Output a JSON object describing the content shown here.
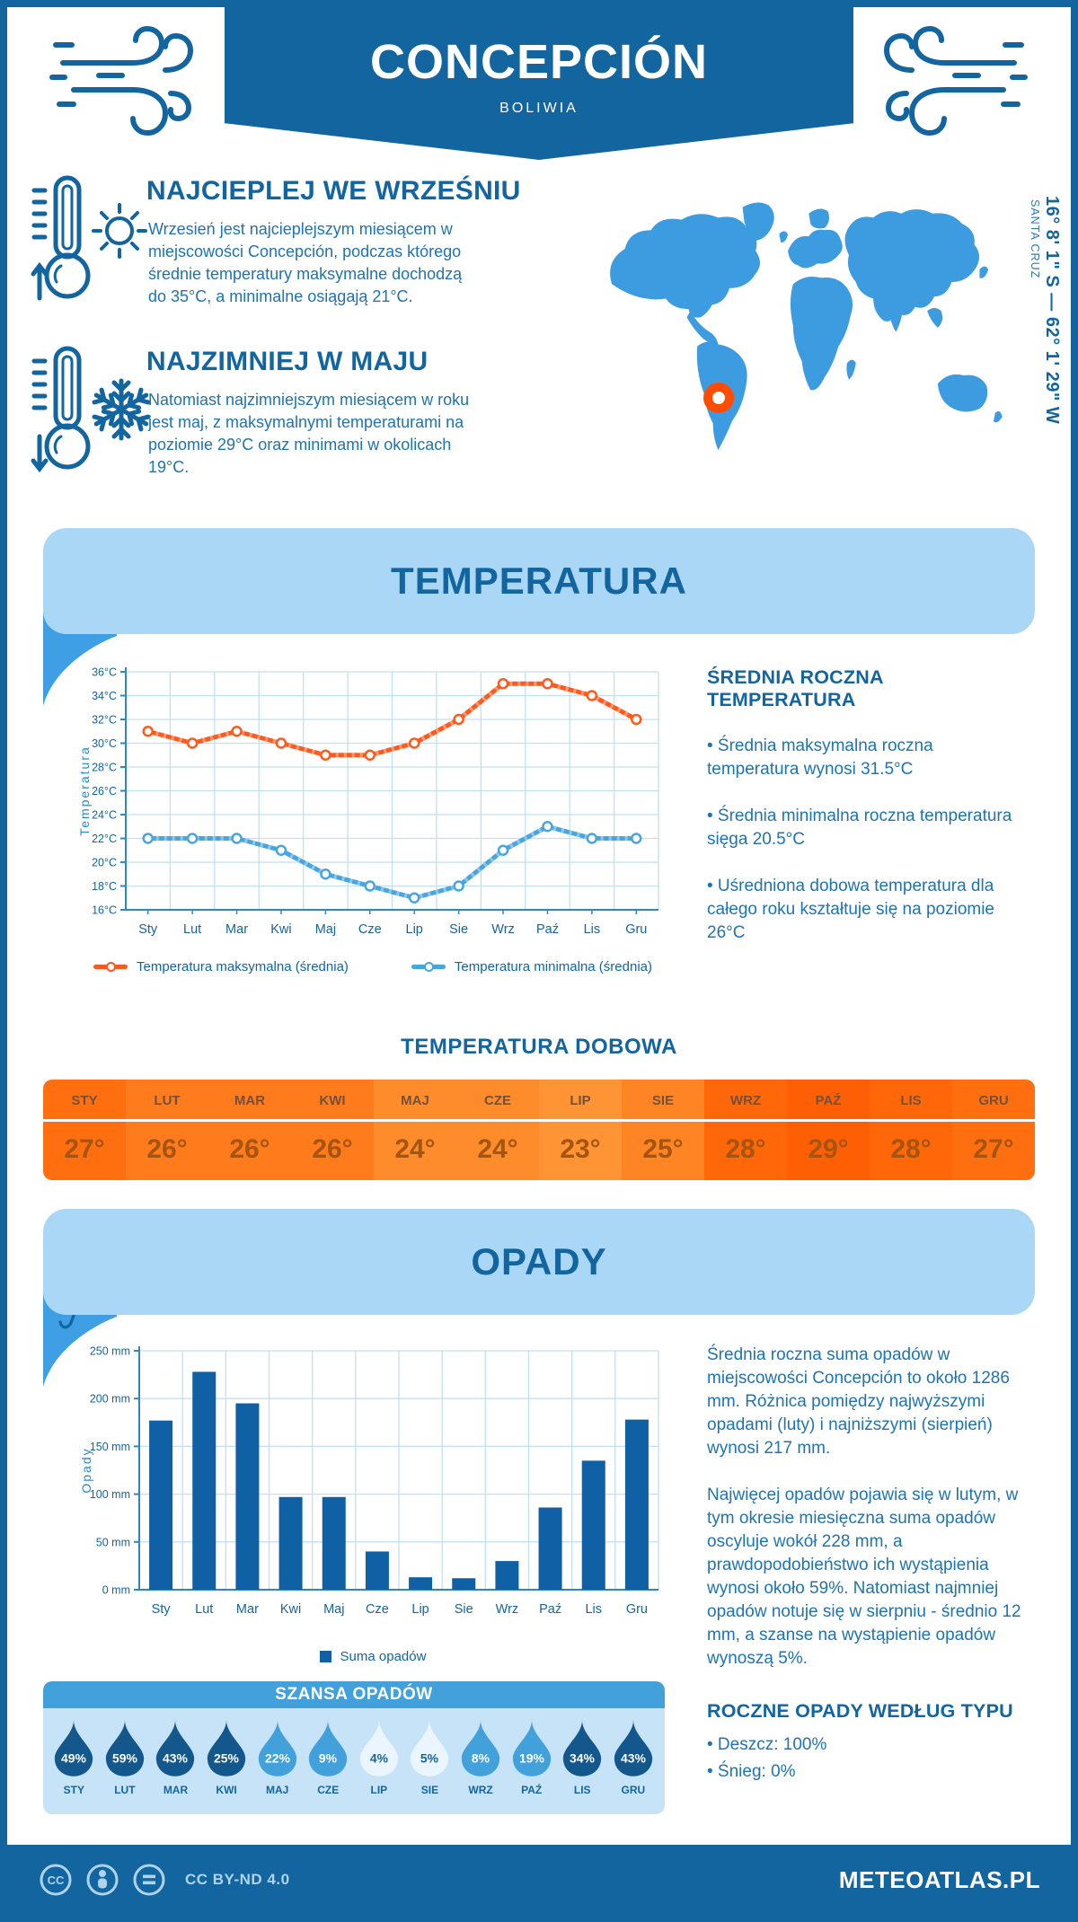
{
  "header": {
    "title": "CONCEPCIÓN",
    "subtitle": "BOLIWIA"
  },
  "location": {
    "coordinates": "16° 8' 1\" S — 62° 1' 29\" W",
    "region": "SANTA CRUZ"
  },
  "months_short": [
    "Sty",
    "Lut",
    "Mar",
    "Kwi",
    "Maj",
    "Cze",
    "Lip",
    "Sie",
    "Wrz",
    "Paź",
    "Lis",
    "Gru"
  ],
  "months_upper": [
    "STY",
    "LUT",
    "MAR",
    "KWI",
    "MAJ",
    "CZE",
    "LIP",
    "SIE",
    "WRZ",
    "PAŹ",
    "LIS",
    "GRU"
  ],
  "intro": {
    "warmest": {
      "heading": "NAJCIEPLEJ WE WRZEŚNIU",
      "body": "Wrzesień jest najcieplejszym miesiącem w miejscowości Concepción, podczas którego średnie temperatury maksymalne dochodzą do 35°C, a minimalne osiągają 21°C."
    },
    "coldest": {
      "heading": "NAJZIMNIEJ W MAJU",
      "body": "Natomiast najzimniejszym miesiącem w roku jest maj, z maksymalnymi temperaturami na poziomie 29°C oraz minimami w okolicach 19°C."
    }
  },
  "temperature": {
    "banner": "TEMPERATURA",
    "axis_label": "Temperatura",
    "legend": [
      {
        "label": "Temperatura maksymalna (średnia)",
        "color": "#FF5A1C"
      },
      {
        "label": "Temperatura minimalna (średnia)",
        "color": "#47A6DF"
      }
    ],
    "annual": {
      "heading": "ŚREDNIA ROCZNA TEMPERATURA",
      "bullets": [
        "• Średnia maksymalna roczna temperatura wynosi 31.5°C",
        "• Średnia minimalna roczna temperatura sięga 20.5°C",
        "• Uśredniona dobowa temperatura dla całego roku kształtuje się na poziomie 26°C"
      ]
    },
    "daily": {
      "heading": "TEMPERATURA DOBOWA",
      "values": [
        "27°",
        "26°",
        "26°",
        "26°",
        "24°",
        "24°",
        "23°",
        "25°",
        "28°",
        "29°",
        "28°",
        "27°"
      ],
      "cell_colors": [
        "#FF6F0F",
        "#FF7B1B",
        "#FF7B1B",
        "#FF7B1B",
        "#FF8C2B",
        "#FF8C2B",
        "#FF9434",
        "#FF8424",
        "#FF6708",
        "#FF5F04",
        "#FF6708",
        "#FF6F0F"
      ]
    }
  },
  "precipitation": {
    "banner": "OPADY",
    "axis_label": "Opady",
    "legend": "Suma opadów",
    "summary": [
      "Średnia roczna suma opadów w miejscowości Concepción to około 1286 mm. Różnica pomiędzy najwyższymi opadami (luty) i najniższymi (sierpień) wynosi 217 mm.",
      "Najwięcej opadów pojawia się w lutym, w tym okresie miesięczna suma opadów oscyluje wokół 228 mm, a prawdopodobieństwo ich wystąpienia wynosi około 59%. Natomiast najmniej opadów notuje się w sierpniu - średnio 12 mm, a szanse na wystąpienie opadów wynoszą 5%."
    ],
    "chance": {
      "heading": "SZANSA OPADÓW",
      "values": [
        "49%",
        "59%",
        "43%",
        "25%",
        "22%",
        "9%",
        "4%",
        "5%",
        "8%",
        "19%",
        "34%",
        "43%"
      ],
      "levels": [
        "dark",
        "dark",
        "dark",
        "dark",
        "mid",
        "mid",
        "light",
        "light",
        "mid",
        "mid",
        "dark",
        "dark"
      ],
      "level_colors": {
        "dark": "#14578C",
        "mid": "#42A0DB",
        "light": "#EAF5FD"
      },
      "level_text_colors": {
        "dark": "#ffffff",
        "mid": "#ffffff",
        "light": "#1365A0"
      }
    },
    "by_type": {
      "heading": "ROCZNE OPADY WEDŁUG TYPU",
      "bullets": [
        "• Deszcz: 100%",
        "• Śnieg: 0%"
      ]
    }
  },
  "footer": {
    "license": "CC BY-ND 4.0",
    "site": "METEOATLAS.PL"
  },
  "colors": {
    "primary": "#1365A0",
    "banner_bg": "#ABD7F6",
    "tab_blue": "#3E9FE4",
    "map_blue": "#3D9BE0",
    "marker_orange": "#FF4D00",
    "grid": "#C3DFF4",
    "axis": "#2E86C5",
    "bar": "#0F60A5",
    "max_line": "#FF5A1C",
    "min_line": "#47A6DF"
  },
  "chart_data": [
    {
      "id": "monthly-temperature",
      "type": "line",
      "title": "TEMPERATURA",
      "x": [
        "Sty",
        "Lut",
        "Mar",
        "Kwi",
        "Maj",
        "Cze",
        "Lip",
        "Sie",
        "Wrz",
        "Paź",
        "Lis",
        "Gru"
      ],
      "ylabel": "Temperatura",
      "ylim": [
        16,
        36
      ],
      "ytick_step": 2,
      "ytick_suffix": "°C",
      "grid": true,
      "legend_position": "bottom",
      "series": [
        {
          "name": "Temperatura maksymalna (średnia)",
          "color": "#FF5A1C",
          "values": [
            31,
            30,
            31,
            30,
            29,
            29,
            30,
            32,
            35,
            35,
            34,
            32
          ]
        },
        {
          "name": "Temperatura minimalna (średnia)",
          "color": "#47A6DF",
          "values": [
            22,
            22,
            22,
            21,
            19,
            18,
            17,
            18,
            21,
            23,
            22,
            22
          ]
        }
      ]
    },
    {
      "id": "daily-temperature",
      "type": "table",
      "title": "TEMPERATURA DOBOWA",
      "categories": [
        "STY",
        "LUT",
        "MAR",
        "KWI",
        "MAJ",
        "CZE",
        "LIP",
        "SIE",
        "WRZ",
        "PAŹ",
        "LIS",
        "GRU"
      ],
      "values": [
        27,
        26,
        26,
        26,
        24,
        24,
        23,
        25,
        28,
        29,
        28,
        27
      ]
    },
    {
      "id": "monthly-precipitation",
      "type": "bar",
      "title": "OPADY",
      "x": [
        "Sty",
        "Lut",
        "Mar",
        "Kwi",
        "Maj",
        "Cze",
        "Lip",
        "Sie",
        "Wrz",
        "Paź",
        "Lis",
        "Gru"
      ],
      "ylabel": "Opady",
      "ylim": [
        0,
        250
      ],
      "ytick_step": 50,
      "ytick_suffix": " mm",
      "grid": true,
      "legend_position": "bottom",
      "series": [
        {
          "name": "Suma opadów",
          "color": "#0F60A5",
          "values": [
            177,
            228,
            195,
            97,
            97,
            40,
            13,
            12,
            30,
            86,
            135,
            178
          ]
        }
      ]
    },
    {
      "id": "precipitation-chance",
      "type": "table",
      "title": "SZANSA OPADÓW",
      "categories": [
        "STY",
        "LUT",
        "MAR",
        "KWI",
        "MAJ",
        "CZE",
        "LIP",
        "SIE",
        "WRZ",
        "PAŹ",
        "LIS",
        "GRU"
      ],
      "values": [
        49,
        59,
        43,
        25,
        22,
        9,
        4,
        5,
        8,
        19,
        34,
        43
      ]
    }
  ]
}
